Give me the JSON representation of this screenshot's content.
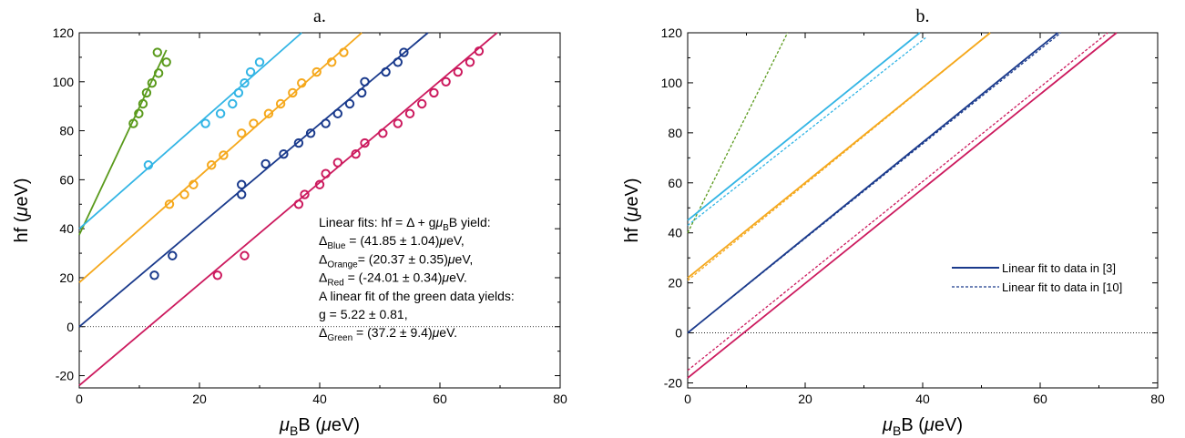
{
  "chart_data": [
    {
      "panel": "a",
      "type": "scatter",
      "title": "a.",
      "xlabel": {
        "mu": "μ",
        "sub": "B",
        "rest": "B (",
        "mu2": "μ",
        "unit": "eV)"
      },
      "ylabel": {
        "prefix": "hf (",
        "mu": "μ",
        "unit": "eV)"
      },
      "xlim": [
        0,
        80
      ],
      "ylim": [
        -25,
        120
      ],
      "xticks": [
        "0",
        "20",
        "40",
        "60",
        "80"
      ],
      "yticks": [
        "-20",
        "0",
        "20",
        "40",
        "60",
        "80",
        "100",
        "120"
      ],
      "zero_line": true,
      "series": [
        {
          "color": "#5a9a1c",
          "fit": {
            "x": [
              0,
              14.5
            ],
            "y": [
              37.5,
              113
            ]
          },
          "points": [
            [
              9,
              83
            ],
            [
              9.9,
              87
            ],
            [
              10.6,
              91
            ],
            [
              11.2,
              95.5
            ],
            [
              12.1,
              99.5
            ],
            [
              13,
              112
            ],
            [
              13.2,
              103.5
            ],
            [
              14.5,
              108
            ]
          ]
        },
        {
          "color": "#33b5e5",
          "fit": {
            "x": [
              0,
              37
            ],
            "y": [
              40,
              120
            ]
          },
          "points": [
            [
              11.5,
              66
            ],
            [
              21,
              83
            ],
            [
              23.5,
              87
            ],
            [
              25.5,
              91
            ],
            [
              26.5,
              95.5
            ],
            [
              27.5,
              99.5
            ],
            [
              28.5,
              104
            ],
            [
              30,
              108
            ]
          ]
        },
        {
          "color": "#f5a81c",
          "fit": {
            "x": [
              0,
              47
            ],
            "y": [
              18,
              120
            ]
          },
          "points": [
            [
              15,
              50
            ],
            [
              17.5,
              54
            ],
            [
              19,
              58
            ],
            [
              22,
              66
            ],
            [
              24,
              70
            ],
            [
              27,
              79
            ],
            [
              29,
              83
            ],
            [
              31.5,
              87
            ],
            [
              33.5,
              91
            ],
            [
              35.5,
              95.5
            ],
            [
              37,
              99.5
            ],
            [
              39.5,
              104
            ],
            [
              42,
              108
            ],
            [
              44,
              112
            ]
          ]
        },
        {
          "color": "#1a3a8c",
          "fit": {
            "x": [
              0,
              58
            ],
            "y": [
              0,
              120
            ]
          },
          "points": [
            [
              12.5,
              21
            ],
            [
              15.5,
              29
            ],
            [
              27,
              54
            ],
            [
              27,
              58
            ],
            [
              31,
              66.5
            ],
            [
              34,
              70.5
            ],
            [
              36.5,
              75
            ],
            [
              38.5,
              79
            ],
            [
              41,
              83
            ],
            [
              43,
              87
            ],
            [
              45,
              91
            ],
            [
              47,
              95.5
            ],
            [
              47.5,
              100
            ],
            [
              51,
              104
            ],
            [
              53,
              108
            ],
            [
              54,
              112
            ]
          ]
        },
        {
          "color": "#cc1a5e",
          "fit": {
            "x": [
              0,
              69.5
            ],
            "y": [
              -24,
              120
            ]
          },
          "points": [
            [
              23,
              21
            ],
            [
              27.5,
              29
            ],
            [
              36.5,
              50
            ],
            [
              37.5,
              54
            ],
            [
              40,
              58
            ],
            [
              41,
              62.5
            ],
            [
              43,
              67
            ],
            [
              46,
              70.5
            ],
            [
              47.5,
              75
            ],
            [
              50.5,
              79
            ],
            [
              53,
              83
            ],
            [
              55,
              87
            ],
            [
              57,
              91
            ],
            [
              59,
              95.5
            ],
            [
              61,
              100
            ],
            [
              63,
              104
            ],
            [
              65,
              108
            ],
            [
              66.5,
              112.5
            ]
          ]
        }
      ],
      "annotation": [
        {
          "parts": [
            [
              "Linear fits: hf = Δ + g",
              ""
            ],
            [
              "μ",
              "it"
            ],
            [
              "B",
              "sub"
            ],
            [
              "B yield:",
              ""
            ]
          ]
        },
        {
          "parts": [
            [
              "Δ",
              ""
            ],
            [
              "Blue",
              "sub"
            ],
            [
              "    = (41.85 ± 1.04)",
              ""
            ],
            [
              "μ",
              "it"
            ],
            [
              "eV,",
              ""
            ]
          ]
        },
        {
          "parts": [
            [
              "Δ",
              ""
            ],
            [
              "Orange",
              "sub"
            ],
            [
              "= (20.37 ± 0.35)",
              ""
            ],
            [
              "μ",
              "it"
            ],
            [
              "eV,",
              ""
            ]
          ]
        },
        {
          "parts": [
            [
              "Δ",
              ""
            ],
            [
              "Red",
              "sub"
            ],
            [
              "     = (-24.01 ± 0.34)",
              ""
            ],
            [
              "μ",
              "it"
            ],
            [
              "eV.",
              ""
            ]
          ]
        },
        {
          "parts": [
            [
              "A linear fit of the green data yields:",
              ""
            ]
          ]
        },
        {
          "parts": [
            [
              "g = 5.22 ± 0.81,",
              ""
            ]
          ]
        },
        {
          "parts": [
            [
              "Δ",
              ""
            ],
            [
              "Green",
              "sub"
            ],
            [
              " = (37.2 ± 9.4)",
              ""
            ],
            [
              "μ",
              "it"
            ],
            [
              "eV.",
              ""
            ]
          ]
        }
      ]
    },
    {
      "panel": "b",
      "type": "line",
      "title": "b.",
      "xlabel": {
        "mu": "μ",
        "sub": "B",
        "rest": "B (",
        "mu2": "μ",
        "unit": "eV)"
      },
      "ylabel": {
        "prefix": "hf (",
        "mu": "μ",
        "unit": "eV)"
      },
      "xlim": [
        0,
        80
      ],
      "ylim": [
        -22,
        120
      ],
      "xticks": [
        "0",
        "20",
        "40",
        "60",
        "80"
      ],
      "yticks": [
        "-20",
        "0",
        "20",
        "40",
        "60",
        "80",
        "100",
        "120"
      ],
      "zero_line": true,
      "lines": [
        {
          "color": "#5a9a1c",
          "dash": true,
          "x": [
            0,
            17
          ],
          "y": [
            40,
            120
          ]
        },
        {
          "color": "#33b5e5",
          "dash": false,
          "x": [
            0,
            39.5
          ],
          "y": [
            45,
            120
          ]
        },
        {
          "color": "#33b5e5",
          "dash": true,
          "x": [
            0,
            40.5
          ],
          "y": [
            43,
            118
          ]
        },
        {
          "color": "#f5a81c",
          "dash": false,
          "x": [
            0,
            51.5
          ],
          "y": [
            22,
            120
          ]
        },
        {
          "color": "#f5a81c",
          "dash": true,
          "x": [
            0,
            51.5
          ],
          "y": [
            21,
            120
          ]
        },
        {
          "color": "#1a3a8c",
          "dash": false,
          "x": [
            0,
            63
          ],
          "y": [
            0,
            120
          ]
        },
        {
          "color": "#1a3a8c",
          "dash": true,
          "x": [
            0,
            63.5
          ],
          "y": [
            0,
            120
          ]
        },
        {
          "color": "#cc1a5e",
          "dash": true,
          "x": [
            0,
            71.5
          ],
          "y": [
            -15,
            120
          ]
        },
        {
          "color": "#cc1a5e",
          "dash": false,
          "x": [
            0,
            73
          ],
          "y": [
            -18,
            120
          ]
        }
      ],
      "legend": [
        {
          "label": "Linear fit to data in [3]",
          "color": "#1a3a8c",
          "dash": false
        },
        {
          "label": "Linear fit to data in [10]",
          "color": "#1a3a8c",
          "dash": true
        }
      ]
    }
  ]
}
